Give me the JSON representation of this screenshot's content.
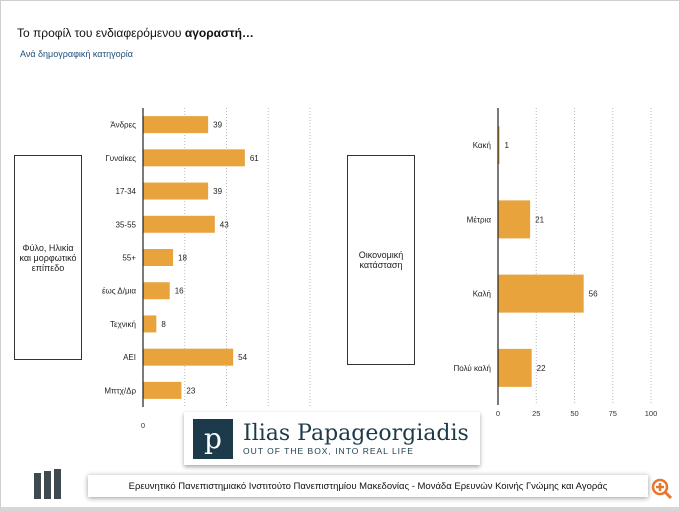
{
  "header": {
    "title_plain": "Το προφίλ του ενδιαφερόμενου ",
    "title_bold": "αγοραστή…",
    "subtitle": "Ανά δημογραφική κατηγορία"
  },
  "logo": {
    "name": "Ilias Papageorgiadis",
    "tagline": "OUT OF THE BOX, INTO REAL LIFE",
    "mark": "ip"
  },
  "footer": {
    "banner": "Ερευνητικό Πανεπιστημιακό Ινστιτούτο Πανεπιστημίου Μακεδονίας - Μονάδα Ερευνών Κοινής Γνώμης και Αγοράς"
  },
  "colors": {
    "bar": "#E8A33D",
    "zoom": "#E8762B"
  },
  "chart_data": [
    {
      "type": "bar",
      "orientation": "horizontal",
      "group_label": "Φύλο, Ηλικία και μορφωτικό επίπεδο",
      "categories": [
        "Άνδρες",
        "Γυναίκες",
        "17-34",
        "35-55",
        "55+",
        "έως Δ/μια",
        "Τεχνική",
        "ΑΕΙ",
        "Μπτχ/Δρ"
      ],
      "values": [
        39,
        61,
        39,
        43,
        18,
        16,
        8,
        54,
        23
      ],
      "xlim": [
        0,
        100
      ],
      "xticks": [
        "0"
      ],
      "grid": true
    },
    {
      "type": "bar",
      "orientation": "horizontal",
      "group_label": "Οικονομική κατάσταση",
      "categories": [
        "Κακή",
        "Μέτρια",
        "Καλή",
        "Πολύ καλή"
      ],
      "values": [
        1,
        21,
        56,
        22
      ],
      "xlim": [
        0,
        100
      ],
      "xticks": [
        "0",
        "25",
        "50",
        "75",
        "100"
      ],
      "grid": true
    }
  ]
}
